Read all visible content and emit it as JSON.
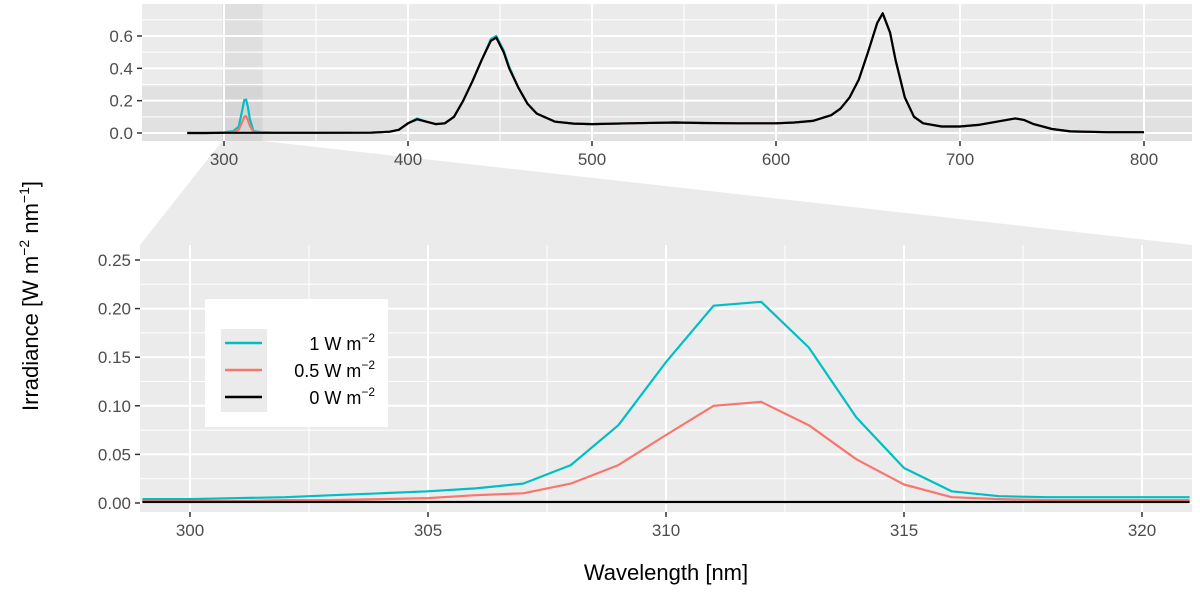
{
  "chart_data": [
    {
      "type": "line",
      "panel": "overview",
      "xlim": [
        280,
        800
      ],
      "ylim": [
        0,
        0.75
      ],
      "xticks": [
        "300",
        "400",
        "500",
        "600",
        "700",
        "800"
      ],
      "yticks": [
        "0.0",
        "0.2",
        "0.4",
        "0.6"
      ],
      "grid": true,
      "highlight_band": {
        "x": [
          299,
          321
        ],
        "y": [
          0,
          0.25
        ]
      },
      "x": [
        280,
        290,
        300,
        305,
        308,
        310,
        311,
        312,
        313,
        314,
        316,
        320,
        330,
        350,
        380,
        390,
        395,
        400,
        405,
        410,
        415,
        420,
        425,
        430,
        435,
        440,
        445,
        448,
        452,
        455,
        460,
        465,
        470,
        480,
        490,
        500,
        520,
        545,
        560,
        580,
        600,
        610,
        620,
        630,
        635,
        640,
        645,
        650,
        655,
        658,
        662,
        665,
        670,
        675,
        680,
        690,
        700,
        710,
        720,
        730,
        735,
        740,
        750,
        760,
        780,
        800
      ],
      "series": [
        {
          "name": "1 W m−2",
          "color": "#00BFC4",
          "values": [
            0,
            0,
            0.004,
            0.012,
            0.039,
            0.145,
            0.203,
            0.207,
            0.16,
            0.088,
            0.012,
            0.005,
            0.002,
            0.002,
            0.003,
            0.008,
            0.02,
            0.06,
            0.09,
            0.07,
            0.055,
            0.06,
            0.1,
            0.2,
            0.32,
            0.45,
            0.58,
            0.6,
            0.51,
            0.41,
            0.28,
            0.18,
            0.12,
            0.07,
            0.058,
            0.055,
            0.06,
            0.065,
            0.062,
            0.06,
            0.06,
            0.065,
            0.075,
            0.11,
            0.15,
            0.22,
            0.33,
            0.5,
            0.68,
            0.74,
            0.62,
            0.45,
            0.22,
            0.1,
            0.06,
            0.04,
            0.04,
            0.05,
            0.07,
            0.09,
            0.08,
            0.055,
            0.025,
            0.01,
            0.005,
            0.005
          ]
        },
        {
          "name": "0.5 W m−2",
          "color": "#F8766D",
          "values": [
            0,
            0,
            0.002,
            0.005,
            0.02,
            0.07,
            0.1,
            0.104,
            0.08,
            0.045,
            0.006,
            0.003,
            0.001,
            0.001,
            0.002,
            0.008,
            0.02,
            0.06,
            0.085,
            0.07,
            0.055,
            0.06,
            0.1,
            0.2,
            0.32,
            0.45,
            0.57,
            0.59,
            0.5,
            0.4,
            0.28,
            0.18,
            0.12,
            0.07,
            0.058,
            0.055,
            0.06,
            0.065,
            0.062,
            0.06,
            0.06,
            0.065,
            0.075,
            0.11,
            0.15,
            0.22,
            0.33,
            0.5,
            0.68,
            0.74,
            0.62,
            0.45,
            0.22,
            0.1,
            0.06,
            0.04,
            0.04,
            0.05,
            0.07,
            0.09,
            0.08,
            0.055,
            0.025,
            0.01,
            0.005,
            0.005
          ]
        },
        {
          "name": "0 W m−2",
          "color": "#000000",
          "values": [
            0,
            0,
            0.001,
            0.001,
            0.001,
            0.001,
            0.001,
            0.001,
            0.001,
            0.001,
            0.001,
            0.001,
            0.001,
            0.001,
            0.002,
            0.008,
            0.02,
            0.06,
            0.085,
            0.07,
            0.055,
            0.06,
            0.1,
            0.2,
            0.32,
            0.45,
            0.57,
            0.59,
            0.5,
            0.4,
            0.28,
            0.18,
            0.12,
            0.07,
            0.058,
            0.055,
            0.06,
            0.065,
            0.062,
            0.06,
            0.06,
            0.065,
            0.075,
            0.11,
            0.15,
            0.22,
            0.33,
            0.5,
            0.68,
            0.74,
            0.62,
            0.45,
            0.22,
            0.1,
            0.06,
            0.04,
            0.04,
            0.05,
            0.07,
            0.09,
            0.08,
            0.055,
            0.025,
            0.01,
            0.005,
            0.005
          ]
        }
      ]
    },
    {
      "type": "line",
      "panel": "zoom",
      "xlabel": "Wavelength [nm]",
      "xlim": [
        299,
        321
      ],
      "ylim": [
        0,
        0.25
      ],
      "xticks": [
        "300",
        "305",
        "310",
        "315",
        "320"
      ],
      "yticks": [
        "0.00",
        "0.05",
        "0.10",
        "0.15",
        "0.20",
        "0.25"
      ],
      "grid": true,
      "legend_position": "top-left",
      "x": [
        299,
        300,
        301,
        302,
        303,
        304,
        305,
        306,
        307,
        308,
        309,
        310,
        311,
        312,
        313,
        314,
        315,
        316,
        317,
        318,
        319,
        320,
        321
      ],
      "series": [
        {
          "name": "1 W m−2",
          "color": "#00BFC4",
          "values": [
            0.004,
            0.004,
            0.005,
            0.006,
            0.008,
            0.01,
            0.012,
            0.015,
            0.02,
            0.039,
            0.08,
            0.145,
            0.203,
            0.207,
            0.16,
            0.088,
            0.036,
            0.012,
            0.007,
            0.006,
            0.006,
            0.006,
            0.006
          ]
        },
        {
          "name": "0.5 W m−2",
          "color": "#F8766D",
          "values": [
            0.002,
            0.002,
            0.002,
            0.003,
            0.003,
            0.004,
            0.005,
            0.008,
            0.01,
            0.02,
            0.039,
            0.07,
            0.1,
            0.104,
            0.08,
            0.045,
            0.019,
            0.006,
            0.004,
            0.003,
            0.003,
            0.003,
            0.003
          ]
        },
        {
          "name": "0 W m−2",
          "color": "#000000",
          "values": [
            0.001,
            0.001,
            0.001,
            0.001,
            0.001,
            0.001,
            0.001,
            0.001,
            0.001,
            0.001,
            0.001,
            0.001,
            0.001,
            0.001,
            0.001,
            0.001,
            0.001,
            0.001,
            0.001,
            0.001,
            0.001,
            0.001,
            0.001
          ]
        }
      ]
    }
  ],
  "ylabel": {
    "main": "Irradiance [W m",
    "sup1": "−2",
    "mid": " nm",
    "sup2": "−1",
    "end": "]"
  },
  "legend": [
    {
      "label": "1 W m",
      "sup": "−2"
    },
    {
      "label": "0.5 W m",
      "sup": "−2"
    },
    {
      "label": "0 W m",
      "sup": "−2"
    }
  ]
}
